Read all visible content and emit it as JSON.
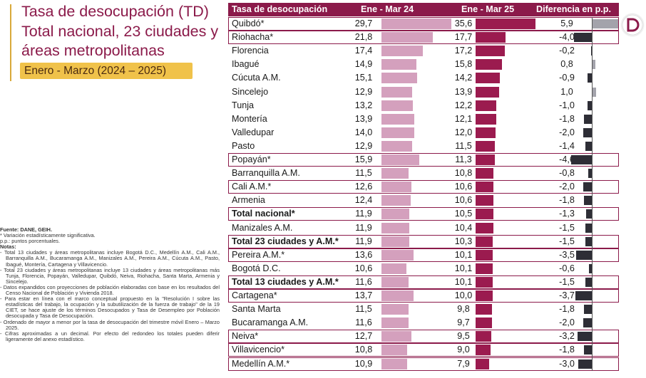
{
  "title": {
    "part1": "Tasa de desocupación",
    "part1_abbr": " (TD)",
    "line2": "Total nacional, 23 ciudades y",
    "line3": "áreas metropolitanas",
    "period": "Enero - Marzo (2024 – 2025)"
  },
  "notes": {
    "fuente": "Fuente: DANE, GEIH.",
    "items": [
      "* Variación estadísticamente significativa.",
      "p.p.: puntos porcentuales.",
      "Notas:",
      "- Total 13 ciudades y áreas metropolitanas incluye Bogotá D.C., Medellín A.M., Cali A.M., Barranquilla A.M., Bucaramanga A.M., Manizales A.M., Pereira A.M., Cúcuta A.M., Pasto, Ibagué, Montería, Cartagena y Villavicencio.",
      "- Total 23 ciudades y áreas metropolitanas incluye 13 ciudades y áreas metropolitanas más Tunja, Florencia, Popayán, Valledupar, Quibdó, Neiva, Riohacha, Santa Marta, Armenia y Sincelejo.",
      "- Datos expandidos con proyecciones de población elaboradas con base en los resultados del Censo Nacional de Población y Vivienda 2018.",
      "- Para estar en línea con el marco conceptual propuesto en la \"Resolución I sobre las estadísticas del trabajo, la ocupación y la subutilización de la fuerza de trabajo\" de la 19 CIET, se hace ajuste de los términos Desocupados y Tasa de Desempleo por Población desocupada y Tasa de Desocupación.",
      "- Ordenado de mayor a menor por la tasa de desocupación del trimestre móvil Enero – Marzo 2025.",
      "- Cifras aproximadas a un decimal. Por efecto del redondeo los totales pueden diferir ligeramente del anexo estadístico."
    ]
  },
  "colors": {
    "brand": "#8b1a4a",
    "bar_2024": "#d4a0bd",
    "bar_2025": "#9b1b4f",
    "diff_negative": "#2e2e36",
    "diff_positive": "#a3a3ab",
    "badge": "#f0c24a"
  },
  "logo_icon": "dane-logo-icon",
  "chart_data": {
    "type": "table",
    "headers": [
      "Tasa de desocupación",
      "Ene - Mar 24",
      "Ene - Mar 25",
      "Diferencia en p.p."
    ],
    "x_max": 35.6,
    "rows": [
      {
        "city": "Quibdó*",
        "v24": "29,7",
        "v25": "35,6",
        "diff": "5,9",
        "highlight": true,
        "bold": false
      },
      {
        "city": "Riohacha*",
        "v24": "21,8",
        "v25": "17,7",
        "diff": "-4,0",
        "highlight": true,
        "bold": false
      },
      {
        "city": "Florencia",
        "v24": "17,4",
        "v25": "17,2",
        "diff": "-0,2",
        "highlight": false,
        "bold": false
      },
      {
        "city": "Ibagué",
        "v24": "14,9",
        "v25": "15,8",
        "diff": "0,8",
        "highlight": false,
        "bold": false
      },
      {
        "city": "Cúcuta A.M.",
        "v24": "15,1",
        "v25": "14,2",
        "diff": "-0,9",
        "highlight": false,
        "bold": false
      },
      {
        "city": "Sincelejo",
        "v24": "12,9",
        "v25": "13,9",
        "diff": "1,0",
        "highlight": false,
        "bold": false
      },
      {
        "city": "Tunja",
        "v24": "13,2",
        "v25": "12,2",
        "diff": "-1,0",
        "highlight": false,
        "bold": false
      },
      {
        "city": "Montería",
        "v24": "13,9",
        "v25": "12,1",
        "diff": "-1,8",
        "highlight": false,
        "bold": false
      },
      {
        "city": "Valledupar",
        "v24": "14,0",
        "v25": "12,0",
        "diff": "-2,0",
        "highlight": false,
        "bold": false
      },
      {
        "city": "Pasto",
        "v24": "12,9",
        "v25": "11,5",
        "diff": "-1,4",
        "highlight": false,
        "bold": false
      },
      {
        "city": "Popayán*",
        "v24": "15,9",
        "v25": "11,3",
        "diff": "-4,6",
        "highlight": true,
        "bold": false
      },
      {
        "city": "Barranquilla A.M.",
        "v24": "11,5",
        "v25": "10,8",
        "diff": "-0,8",
        "highlight": false,
        "bold": false
      },
      {
        "city": "Cali A.M.*",
        "v24": "12,6",
        "v25": "10,6",
        "diff": "-2,0",
        "highlight": true,
        "bold": false
      },
      {
        "city": "Armenia",
        "v24": "12,4",
        "v25": "10,6",
        "diff": "-1,8",
        "highlight": false,
        "bold": false
      },
      {
        "city": "Total nacional*",
        "v24": "11,9",
        "v25": "10,5",
        "diff": "-1,3",
        "highlight": true,
        "bold": true
      },
      {
        "city": "Manizales A.M.",
        "v24": "11,9",
        "v25": "10,4",
        "diff": "-1,5",
        "highlight": false,
        "bold": false
      },
      {
        "city": "Total 23 ciudades y A.M.*",
        "v24": "11,9",
        "v25": "10,3",
        "diff": "-1,5",
        "highlight": true,
        "bold": true
      },
      {
        "city": "Pereira A.M.*",
        "v24": "13,6",
        "v25": "10,1",
        "diff": "-3,5",
        "highlight": true,
        "bold": false
      },
      {
        "city": "Bogotá D.C.",
        "v24": "10,6",
        "v25": "10,1",
        "diff": "-0,6",
        "highlight": false,
        "bold": false
      },
      {
        "city": "Total 13 ciudades y A.M.*",
        "v24": "11,6",
        "v25": "10,1",
        "diff": "-1,5",
        "highlight": true,
        "bold": true
      },
      {
        "city": "Cartagena*",
        "v24": "13,7",
        "v25": "10,0",
        "diff": "-3,7",
        "highlight": true,
        "bold": false
      },
      {
        "city": "Santa Marta",
        "v24": "11,5",
        "v25": "9,8",
        "diff": "-1,8",
        "highlight": false,
        "bold": false
      },
      {
        "city": "Bucaramanga A.M.",
        "v24": "11,6",
        "v25": "9,7",
        "diff": "-2,0",
        "highlight": false,
        "bold": false
      },
      {
        "city": "Neiva*",
        "v24": "12,7",
        "v25": "9,5",
        "diff": "-3,2",
        "highlight": true,
        "bold": false
      },
      {
        "city": "Villavicencio*",
        "v24": "10,8",
        "v25": "9,0",
        "diff": "-1,8",
        "highlight": true,
        "bold": false
      },
      {
        "city": "Medellín A.M.*",
        "v24": "10,9",
        "v25": "7,9",
        "diff": "-3,0",
        "highlight": true,
        "bold": false
      }
    ]
  }
}
